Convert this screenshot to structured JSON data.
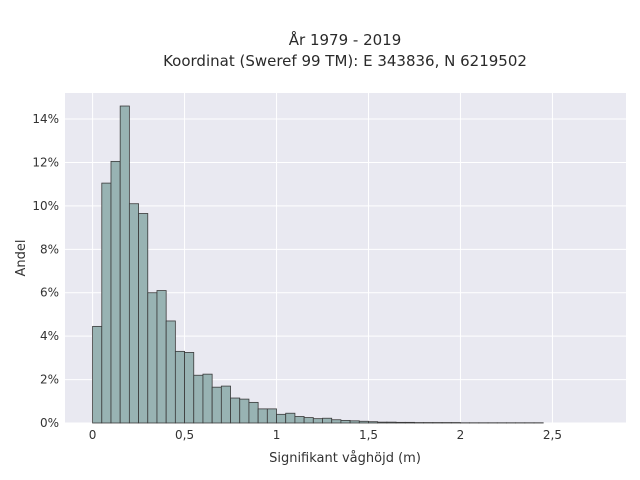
{
  "chart_data": {
    "type": "bar",
    "title_line1": "År 1979 - 2019",
    "title_line2": "Koordinat (Sweref 99 TM): E 343836, N 6219502",
    "xlabel": "Signifikant våghöjd (m)",
    "ylabel": "Andel",
    "xlim": [
      -0.15,
      2.9
    ],
    "ylim": [
      0,
      15.2
    ],
    "x_ticks": [
      {
        "value": 0,
        "label": "0"
      },
      {
        "value": 0.5,
        "label": "0,5"
      },
      {
        "value": 1,
        "label": "1"
      },
      {
        "value": 1.5,
        "label": "1,5"
      },
      {
        "value": 2,
        "label": "2"
      },
      {
        "value": 2.5,
        "label": "2,5"
      }
    ],
    "y_ticks": [
      {
        "value": 0,
        "label": "0%"
      },
      {
        "value": 2,
        "label": "2%"
      },
      {
        "value": 4,
        "label": "4%"
      },
      {
        "value": 6,
        "label": "6%"
      },
      {
        "value": 8,
        "label": "8%"
      },
      {
        "value": 10,
        "label": "10%"
      },
      {
        "value": 12,
        "label": "12%"
      },
      {
        "value": 14,
        "label": "14%"
      }
    ],
    "grid": true,
    "bin_width": 0.05,
    "bin_start": 0,
    "values": [
      4.45,
      11.05,
      12.05,
      14.6,
      10.1,
      9.65,
      6.0,
      6.1,
      4.7,
      3.3,
      3.25,
      2.2,
      2.25,
      1.65,
      1.7,
      1.15,
      1.1,
      0.95,
      0.65,
      0.65,
      0.4,
      0.45,
      0.3,
      0.25,
      0.2,
      0.22,
      0.15,
      0.12,
      0.1,
      0.08,
      0.06,
      0.04,
      0.04,
      0.03,
      0.03,
      0.02,
      0.02,
      0.02,
      0.02,
      0.02,
      0.01,
      0.01,
      0.01,
      0.01,
      0.01,
      0.01,
      0.01,
      0.01,
      0.01
    ],
    "bar_color": "#98b3b3",
    "bar_edge_color": "#3a3a3a",
    "plot_bg": "#e9e9f1"
  }
}
